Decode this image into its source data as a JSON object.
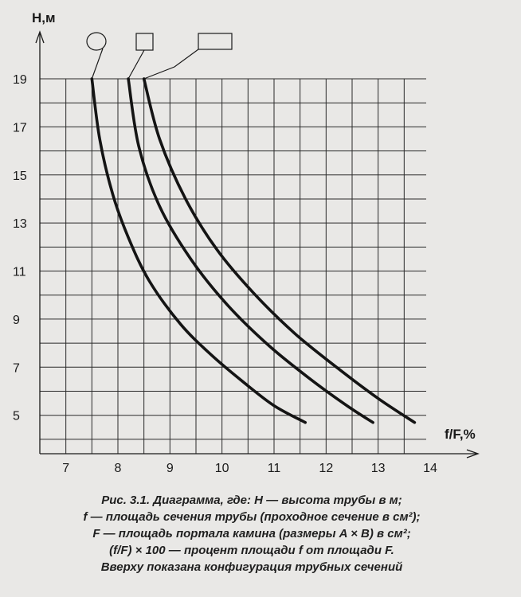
{
  "chart_data": {
    "type": "line",
    "title": "",
    "xlabel": "f/F,%",
    "ylabel": "H,м",
    "xlim": [
      6.5,
      14
    ],
    "ylim": [
      3.4,
      19
    ],
    "x_ticks": [
      7,
      8,
      9,
      10,
      11,
      12,
      13,
      14
    ],
    "y_ticks": [
      5,
      7,
      9,
      11,
      13,
      15,
      17,
      19
    ],
    "grid": true,
    "legend": "top: shape symbols (circle, square, rectangle) linked to curves",
    "series": [
      {
        "symbol": "circle",
        "x": [
          7.5,
          7.65,
          7.9,
          8.2,
          8.6,
          9.2,
          9.8,
          10.4,
          11.0,
          11.6
        ],
        "y": [
          19,
          16.5,
          14.2,
          12.4,
          10.6,
          8.8,
          7.5,
          6.4,
          5.4,
          4.7
        ]
      },
      {
        "symbol": "square",
        "x": [
          8.2,
          8.4,
          8.8,
          9.4,
          10.1,
          10.9,
          11.7,
          12.4,
          12.9
        ],
        "y": [
          19,
          16.2,
          13.7,
          11.5,
          9.6,
          7.9,
          6.5,
          5.4,
          4.7
        ]
      },
      {
        "symbol": "rectangle",
        "x": [
          8.5,
          8.8,
          9.3,
          9.9,
          10.6,
          11.4,
          12.2,
          13.0,
          13.7
        ],
        "y": [
          19,
          16.5,
          14.0,
          11.9,
          10.1,
          8.4,
          7.0,
          5.7,
          4.7
        ]
      }
    ]
  },
  "caption": {
    "lines": [
      "Рис. 3.1. Диаграмма, где: H — высота трубы в м;",
      "f — площадь сечения трубы (проходное сечение в см²);",
      "F — площадь портала камина (размеры A × B) в см²;",
      "(f/F) × 100 — процент площади f от площади F.",
      "Вверху показана конфигурация трубных сечений"
    ]
  }
}
